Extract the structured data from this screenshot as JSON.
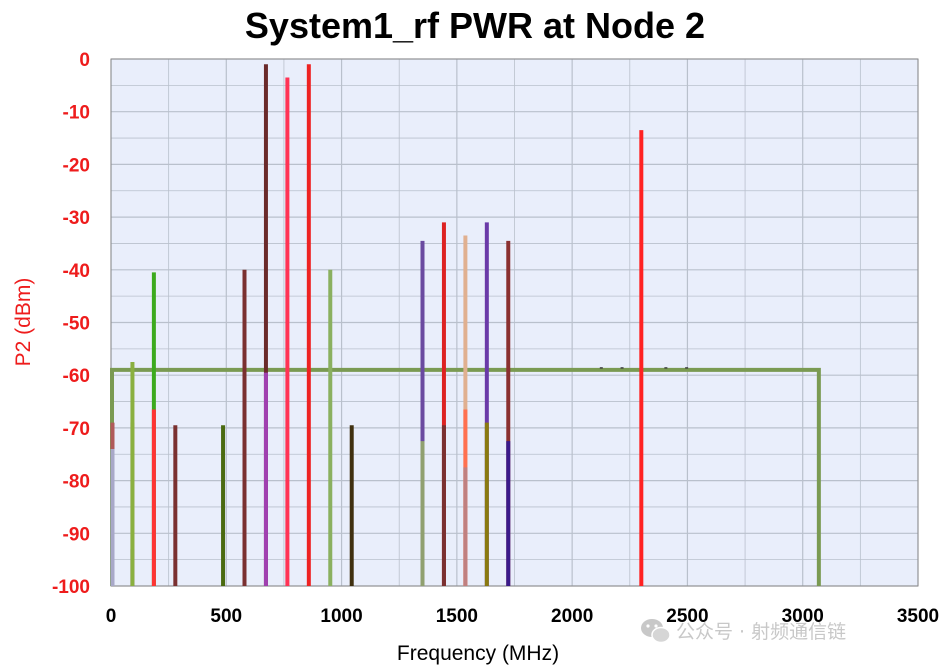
{
  "chart_data": {
    "type": "bar",
    "title": "System1_rf PWR at Node 2",
    "xlabel": "Frequency (MHz)",
    "ylabel": "P2 (dBm)",
    "xlim": [
      0,
      3500
    ],
    "ylim": [
      -100,
      0
    ],
    "xticks": [
      "0",
      "500",
      "1000",
      "1500",
      "2000",
      "2500",
      "3000",
      "3500"
    ],
    "yticks": [
      "0",
      "-10",
      "-20",
      "-30",
      "-40",
      "-50",
      "-60",
      "-70",
      "-80",
      "-90",
      "-100"
    ],
    "grid": true,
    "legend": "none",
    "colors": {
      "plot_background": "#e9eefb",
      "grid": "#b9c0cc",
      "y_axis_text": "#ee1c1c",
      "noise_floor": "#7a9a52"
    },
    "noise_floor": {
      "from_x": 0,
      "to_x": 3070,
      "level": -59
    },
    "series": [
      {
        "x": 0,
        "segments": [
          {
            "top": -69,
            "color": "#b05a5a"
          },
          {
            "top": -74,
            "color": "#a8a8c8"
          }
        ]
      },
      {
        "x": 93,
        "segments": [
          {
            "top": -69,
            "color": "#c08080"
          },
          {
            "top": -93,
            "color": "#8a4aa8"
          }
        ]
      },
      {
        "x": 93,
        "segments": [
          {
            "top": -57.5,
            "color": "#8ab040"
          }
        ]
      },
      {
        "x": 186,
        "segments": [
          {
            "top": -40.5,
            "color": "#3caa1e"
          },
          {
            "top": -66.5,
            "color": "#ff3333"
          }
        ]
      },
      {
        "x": 279,
        "segments": [
          {
            "top": -69.5,
            "color": "#7a3030"
          }
        ]
      },
      {
        "x": 486,
        "segments": [
          {
            "top": -69.5,
            "color": "#4a6a10"
          }
        ]
      },
      {
        "x": 579,
        "segments": [
          {
            "top": -40,
            "color": "#7a3030"
          }
        ]
      },
      {
        "x": 672,
        "segments": [
          {
            "top": -1,
            "color": "#6a2a2a"
          },
          {
            "top": -59.5,
            "color": "#a040b0"
          }
        ]
      },
      {
        "x": 765,
        "segments": [
          {
            "top": -3.5,
            "color": "#ff3355"
          }
        ]
      },
      {
        "x": 858,
        "segments": [
          {
            "top": -1,
            "color": "#ee2222"
          }
        ]
      },
      {
        "x": 951,
        "segments": [
          {
            "top": -40,
            "color": "#8ab060"
          }
        ]
      },
      {
        "x": 1044,
        "segments": [
          {
            "top": -69.5,
            "color": "#403010"
          }
        ]
      },
      {
        "x": 1351,
        "segments": [
          {
            "top": -34.5,
            "color": "#6a4aa0"
          },
          {
            "top": -72.5,
            "color": "#90a070"
          }
        ]
      },
      {
        "x": 1444,
        "segments": [
          {
            "top": -31,
            "color": "#dd2222"
          },
          {
            "top": -69.5,
            "color": "#7a3030"
          }
        ]
      },
      {
        "x": 1537,
        "segments": [
          {
            "top": -33.5,
            "color": "#e0b090"
          },
          {
            "top": -66.5,
            "color": "#ff7050"
          },
          {
            "top": -77.5,
            "color": "#c08080"
          }
        ]
      },
      {
        "x": 1630,
        "segments": [
          {
            "top": -31,
            "color": "#6a3aa8"
          },
          {
            "top": -69,
            "color": "#8a7a10"
          }
        ]
      },
      {
        "x": 1723,
        "segments": [
          {
            "top": -34.5,
            "color": "#8a3030"
          },
          {
            "top": -72.5,
            "color": "#3a1a8a"
          }
        ]
      },
      {
        "x": 2300,
        "segments": [
          {
            "top": -13.5,
            "color": "#ff2222"
          }
        ]
      }
    ]
  },
  "watermark": {
    "text": "公众号 · 射频通信链",
    "icon": "wechat-icon"
  }
}
